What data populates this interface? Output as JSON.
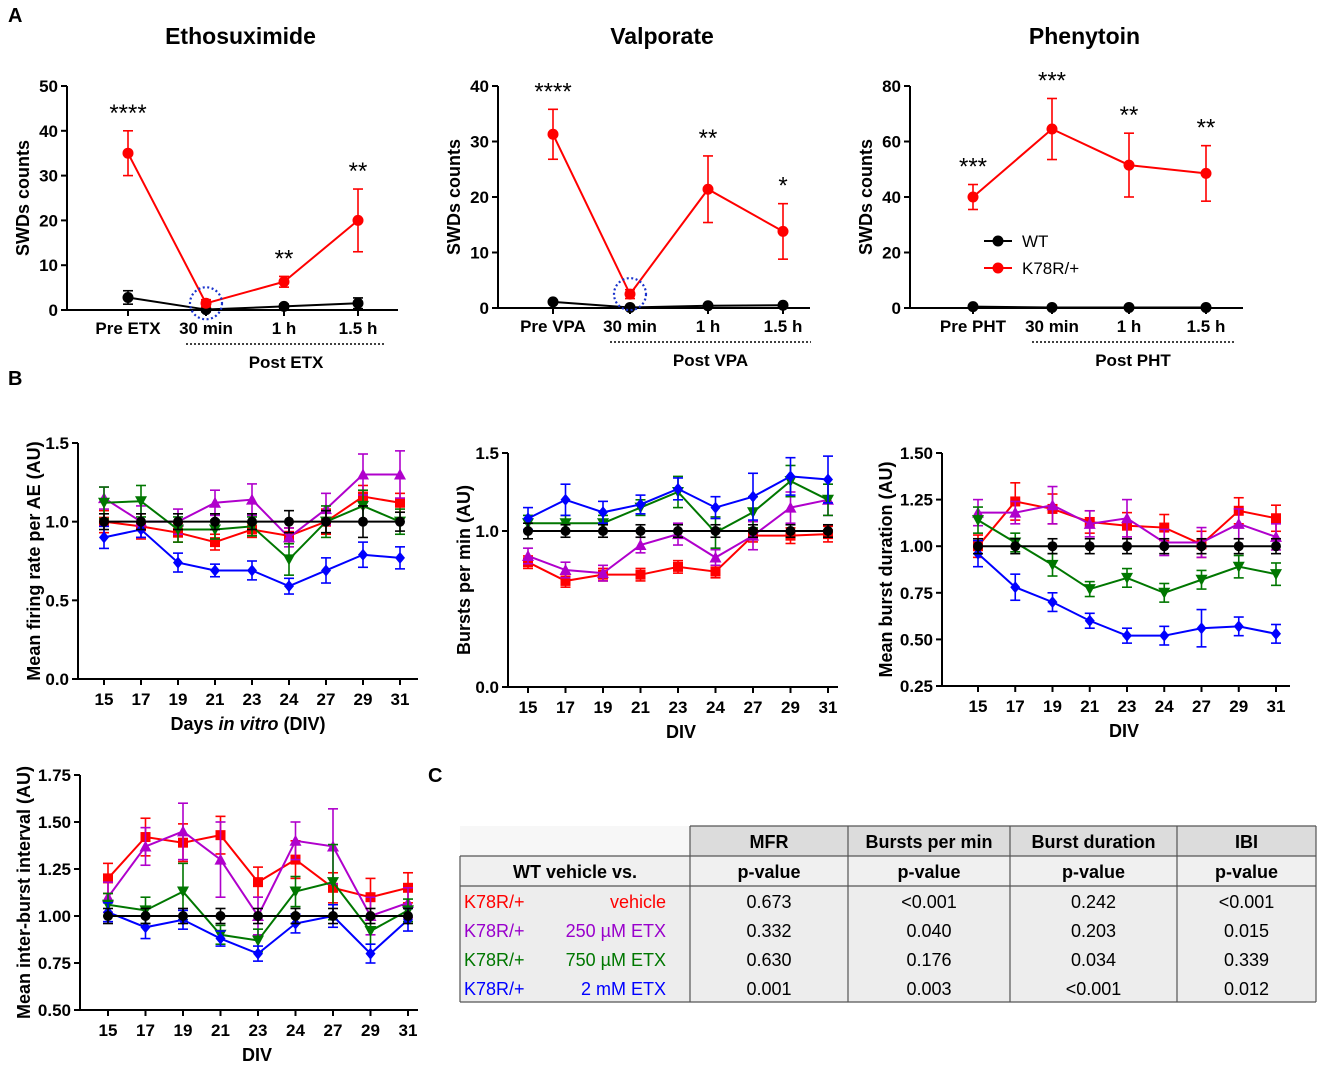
{
  "panel_labels": [
    "A",
    "B",
    "C"
  ],
  "chart_data": [
    {
      "id": "etx",
      "type": "line",
      "title": "Ethosuximide",
      "ylabel": "SWDs counts",
      "ylim": [
        0,
        50
      ],
      "yticks": [
        "0",
        "10",
        "20",
        "30",
        "40",
        "50"
      ],
      "categories": [
        "Pre ETX",
        "30 min",
        "1 h",
        "1.5 h"
      ],
      "post_label": "Post ETX",
      "series": [
        {
          "name": "WT",
          "color": "#000000",
          "values": [
            2.8,
            0.1,
            0.8,
            1.5
          ],
          "errors": [
            1.5,
            0.5,
            0.5,
            1.2
          ]
        },
        {
          "name": "K78R/+",
          "color": "#ff0000",
          "values": [
            35,
            1.5,
            6.3,
            20
          ],
          "errors": [
            5,
            0.8,
            1.2,
            7
          ]
        }
      ],
      "annotations": [
        "****",
        "**",
        "**"
      ],
      "annotation_idx": [
        0,
        2,
        3
      ],
      "circle_idx": 1
    },
    {
      "id": "vpa",
      "type": "line",
      "title": "Valporate",
      "ylabel": "SWDs counts",
      "ylim": [
        0,
        40
      ],
      "yticks": [
        "0",
        "10",
        "20",
        "30",
        "40"
      ],
      "categories": [
        "Pre VPA",
        "30 min",
        "1 h",
        "1.5 h"
      ],
      "post_label": "Post VPA",
      "series": [
        {
          "name": "WT",
          "color": "#000000",
          "values": [
            1.1,
            0.1,
            0.4,
            0.5
          ],
          "errors": [
            0.3,
            0.2,
            0.3,
            0.3
          ]
        },
        {
          "name": "K78R/+",
          "color": "#ff0000",
          "values": [
            31.3,
            2.5,
            21.4,
            13.8
          ],
          "errors": [
            4.5,
            0.8,
            6,
            5
          ]
        }
      ],
      "annotations": [
        "****",
        "**",
        "*"
      ],
      "annotation_idx": [
        0,
        2,
        3
      ],
      "circle_idx": 1
    },
    {
      "id": "pht",
      "type": "line",
      "title": "Phenytoin",
      "ylabel": "SWDs counts",
      "ylim": [
        0,
        80
      ],
      "yticks": [
        "0",
        "20",
        "40",
        "60",
        "80"
      ],
      "categories": [
        "Pre PHT",
        "30 min",
        "1 h",
        "1.5 h"
      ],
      "post_label": "Post PHT",
      "series": [
        {
          "name": "WT",
          "color": "#000000",
          "values": [
            0.5,
            0.2,
            0.2,
            0.2
          ],
          "errors": [
            0.3,
            0.2,
            0.2,
            0.2
          ]
        },
        {
          "name": "K78R/+",
          "color": "#ff0000",
          "values": [
            40,
            64.5,
            51.5,
            48.5
          ],
          "errors": [
            4.5,
            11,
            11.5,
            10
          ]
        }
      ],
      "annotations": [
        "***",
        "***",
        "**",
        "**"
      ],
      "annotation_idx": [
        0,
        1,
        2,
        3
      ],
      "legend": [
        "WT",
        "K78R/+"
      ],
      "legend_position": "center"
    },
    {
      "id": "mfr",
      "type": "line",
      "ylabel": "Mean firing rate per AE (AU)",
      "xlabel_parts": [
        "Days ",
        "in vitro",
        " (DIV)"
      ],
      "ylim": [
        0,
        1.5
      ],
      "yticks": [
        "0.0",
        "0.5",
        "1.0",
        "1.5"
      ],
      "ytick_values": [
        0,
        0.5,
        1.0,
        1.5
      ],
      "categories": [
        "15",
        "17",
        "19",
        "21",
        "23",
        "24",
        "27",
        "29",
        "31"
      ],
      "series": [
        {
          "name": "WT vehicle",
          "color": "#000000",
          "marker": "circle",
          "values": [
            1.0,
            1.0,
            1.0,
            1.0,
            1.0,
            1.0,
            1.0,
            1.0,
            1.0
          ],
          "errors": [
            0.05,
            0.05,
            0.05,
            0.05,
            0.05,
            0.07,
            0.07,
            0.1,
            0.06
          ]
        },
        {
          "name": "K78R/+ vehicle",
          "color": "#ff0000",
          "marker": "square",
          "values": [
            1.0,
            0.97,
            0.93,
            0.87,
            0.95,
            0.91,
            1.0,
            1.16,
            1.12
          ],
          "errors": [
            0.07,
            0.08,
            0.06,
            0.05,
            0.05,
            0.05,
            0.08,
            0.07,
            0.06
          ]
        },
        {
          "name": "K78R/+ 250 µM ETX",
          "color": "#b000cc",
          "marker": "triangle-up",
          "values": [
            1.15,
            1.0,
            1.0,
            1.12,
            1.14,
            0.9,
            1.08,
            1.3,
            1.3
          ],
          "errors": [
            0.07,
            0.1,
            0.08,
            0.08,
            0.1,
            0.06,
            0.1,
            0.13,
            0.15
          ]
        },
        {
          "name": "K78R/+ 750 µM ETX",
          "color": "#007700",
          "marker": "triangle-down",
          "values": [
            1.12,
            1.13,
            0.95,
            0.95,
            0.97,
            0.76,
            1.0,
            1.1,
            1.0
          ],
          "errors": [
            0.1,
            0.1,
            0.08,
            0.06,
            0.06,
            0.1,
            0.1,
            0.1,
            0.08
          ]
        },
        {
          "name": "K78R/+ 2 mM ETX",
          "color": "#0000ff",
          "marker": "diamond",
          "values": [
            0.9,
            0.95,
            0.74,
            0.69,
            0.69,
            0.59,
            0.69,
            0.79,
            0.77
          ],
          "errors": [
            0.07,
            0.05,
            0.06,
            0.04,
            0.06,
            0.05,
            0.08,
            0.08,
            0.07
          ]
        }
      ]
    },
    {
      "id": "bpm",
      "type": "line",
      "ylabel": "Bursts per min (AU)",
      "xlabel": "DIV",
      "ylim": [
        0,
        1.5
      ],
      "yticks": [
        "0.0",
        "1.0",
        "1.5"
      ],
      "ytick_values": [
        0,
        1.0,
        1.5
      ],
      "categories": [
        "15",
        "17",
        "19",
        "21",
        "23",
        "24",
        "27",
        "29",
        "31"
      ],
      "series": [
        {
          "name": "WT vehicle",
          "color": "#000000",
          "marker": "circle",
          "values": [
            1.0,
            1.0,
            1.0,
            1.0,
            1.0,
            1.0,
            1.0,
            1.0,
            1.0
          ],
          "errors": [
            0.05,
            0.04,
            0.04,
            0.04,
            0.04,
            0.04,
            0.04,
            0.04,
            0.04
          ]
        },
        {
          "name": "K78R/+ vehicle",
          "color": "#ff0000",
          "marker": "square",
          "values": [
            0.8,
            0.68,
            0.72,
            0.72,
            0.77,
            0.74,
            0.97,
            0.97,
            0.98
          ],
          "errors": [
            0.04,
            0.04,
            0.04,
            0.04,
            0.04,
            0.04,
            0.04,
            0.05,
            0.05
          ]
        },
        {
          "name": "K78R/+ 250 µM ETX",
          "color": "#b000cc",
          "marker": "triangle-up",
          "values": [
            0.84,
            0.75,
            0.73,
            0.91,
            0.98,
            0.83,
            0.97,
            1.15,
            1.2
          ],
          "errors": [
            0.05,
            0.05,
            0.05,
            0.05,
            0.07,
            0.05,
            0.09,
            0.1,
            0.1
          ]
        },
        {
          "name": "K78R/+ 750 µM ETX",
          "color": "#007700",
          "marker": "triangle-down",
          "values": [
            1.05,
            1.05,
            1.05,
            1.15,
            1.25,
            0.99,
            1.12,
            1.32,
            1.2
          ],
          "errors": [
            0.05,
            0.05,
            0.05,
            0.05,
            0.1,
            0.1,
            0.1,
            0.1,
            0.1
          ]
        },
        {
          "name": "K78R/+ 2 mM ETX",
          "color": "#0000ff",
          "marker": "diamond",
          "values": [
            1.08,
            1.2,
            1.12,
            1.17,
            1.27,
            1.15,
            1.22,
            1.35,
            1.33
          ],
          "errors": [
            0.07,
            0.1,
            0.07,
            0.06,
            0.07,
            0.07,
            0.15,
            0.12,
            0.15
          ]
        }
      ]
    },
    {
      "id": "bd",
      "type": "line",
      "ylabel": "Mean burst duration (AU)",
      "xlabel": "DIV",
      "ylim": [
        0.25,
        1.5
      ],
      "yticks": [
        "0.25",
        "0.50",
        "0.75",
        "1.00",
        "1.25",
        "1.50"
      ],
      "ytick_values": [
        0.25,
        0.5,
        0.75,
        1.0,
        1.25,
        1.5
      ],
      "categories": [
        "15",
        "17",
        "19",
        "21",
        "23",
        "24",
        "27",
        "29",
        "31"
      ],
      "series": [
        {
          "name": "WT vehicle",
          "color": "#000000",
          "marker": "circle",
          "values": [
            1.0,
            1.0,
            1.0,
            1.0,
            1.0,
            1.0,
            1.0,
            1.0,
            1.0
          ],
          "errors": [
            0.04,
            0.04,
            0.04,
            0.04,
            0.04,
            0.04,
            0.04,
            0.04,
            0.04
          ]
        },
        {
          "name": "K78R/+ vehicle",
          "color": "#ff0000",
          "marker": "square",
          "values": [
            1.0,
            1.24,
            1.2,
            1.13,
            1.11,
            1.1,
            1.01,
            1.19,
            1.15
          ],
          "errors": [
            0.06,
            0.1,
            0.08,
            0.06,
            0.07,
            0.07,
            0.07,
            0.07,
            0.07
          ]
        },
        {
          "name": "K78R/+ 250 µM ETX",
          "color": "#b000cc",
          "marker": "triangle-up",
          "values": [
            1.18,
            1.18,
            1.22,
            1.12,
            1.15,
            1.02,
            1.02,
            1.12,
            1.05
          ],
          "errors": [
            0.07,
            0.06,
            0.1,
            0.07,
            0.1,
            0.07,
            0.08,
            0.08,
            0.07
          ]
        },
        {
          "name": "K78R/+ 750 µM ETX",
          "color": "#007700",
          "marker": "triangle-down",
          "values": [
            1.14,
            1.02,
            0.9,
            0.77,
            0.83,
            0.75,
            0.82,
            0.89,
            0.85
          ],
          "errors": [
            0.07,
            0.05,
            0.06,
            0.04,
            0.05,
            0.05,
            0.05,
            0.06,
            0.06
          ]
        },
        {
          "name": "K78R/+ 2 mM ETX",
          "color": "#0000ff",
          "marker": "diamond",
          "values": [
            0.96,
            0.78,
            0.7,
            0.6,
            0.52,
            0.52,
            0.56,
            0.57,
            0.53
          ],
          "errors": [
            0.07,
            0.07,
            0.05,
            0.04,
            0.04,
            0.05,
            0.1,
            0.05,
            0.05
          ]
        }
      ]
    },
    {
      "id": "ibi",
      "type": "line",
      "ylabel": "Mean inter-burst interval (AU)",
      "xlabel": "DIV",
      "ylim": [
        0.5,
        1.75
      ],
      "yticks": [
        "0.50",
        "0.75",
        "1.00",
        "1.25",
        "1.50",
        "1.75"
      ],
      "ytick_values": [
        0.5,
        0.75,
        1.0,
        1.25,
        1.5,
        1.75
      ],
      "categories": [
        "15",
        "17",
        "19",
        "21",
        "23",
        "24",
        "27",
        "29",
        "31"
      ],
      "series": [
        {
          "name": "WT vehicle",
          "color": "#000000",
          "marker": "circle",
          "values": [
            1.0,
            1.0,
            1.0,
            1.0,
            1.0,
            1.0,
            1.0,
            1.0,
            1.0
          ],
          "errors": [
            0.04,
            0.04,
            0.04,
            0.04,
            0.04,
            0.04,
            0.04,
            0.04,
            0.04
          ]
        },
        {
          "name": "K78R/+ vehicle",
          "color": "#ff0000",
          "marker": "square",
          "values": [
            1.2,
            1.42,
            1.39,
            1.43,
            1.18,
            1.3,
            1.15,
            1.1,
            1.15
          ],
          "errors": [
            0.08,
            0.1,
            0.1,
            0.1,
            0.08,
            0.1,
            0.08,
            0.1,
            0.08
          ]
        },
        {
          "name": "K78R/+ 250 µM ETX",
          "color": "#b000cc",
          "marker": "triangle-up",
          "values": [
            1.1,
            1.37,
            1.45,
            1.3,
            1.0,
            1.4,
            1.37,
            1.0,
            1.07
          ],
          "errors": [
            0.08,
            0.1,
            0.15,
            0.2,
            0.1,
            0.1,
            0.2,
            0.1,
            0.08
          ]
        },
        {
          "name": "K78R/+ 750 µM ETX",
          "color": "#007700",
          "marker": "triangle-down",
          "values": [
            1.06,
            1.03,
            1.13,
            0.9,
            0.87,
            1.13,
            1.18,
            0.92,
            1.03
          ],
          "errors": [
            0.06,
            0.07,
            0.15,
            0.05,
            0.06,
            0.08,
            0.2,
            0.07,
            0.06
          ]
        },
        {
          "name": "K78R/+ 2 mM ETX",
          "color": "#0000ff",
          "marker": "diamond",
          "values": [
            1.02,
            0.94,
            0.98,
            0.88,
            0.8,
            0.96,
            1.0,
            0.8,
            0.98
          ],
          "errors": [
            0.05,
            0.06,
            0.05,
            0.04,
            0.04,
            0.05,
            0.06,
            0.05,
            0.06
          ]
        }
      ]
    }
  ],
  "table": {
    "columns": [
      "MFR",
      "Bursts per min",
      "Burst duration",
      "IBI"
    ],
    "row_header": "WT vehicle vs.",
    "sub_header": "p-value",
    "rows": [
      {
        "group": "K78R/+ ",
        "treatment": "vehicle",
        "color": "#ff0000",
        "values": [
          "0.673",
          "<0.001",
          "0.242",
          "<0.001"
        ]
      },
      {
        "group": "K78R/+ ",
        "treatment": "250 µM ETX",
        "color": "#9900cc",
        "values": [
          "0.332",
          "0.040",
          "0.203",
          "0.015"
        ]
      },
      {
        "group": "K78R/+ ",
        "treatment": "750 µM ETX",
        "color": "#007700",
        "values": [
          "0.630",
          "0.176",
          "0.034",
          "0.339"
        ]
      },
      {
        "group": "K78R/+ ",
        "treatment": "2 mM ETX",
        "color": "#0000ff",
        "values": [
          "0.001",
          "0.003",
          "<0.001",
          "0.012"
        ]
      }
    ]
  }
}
